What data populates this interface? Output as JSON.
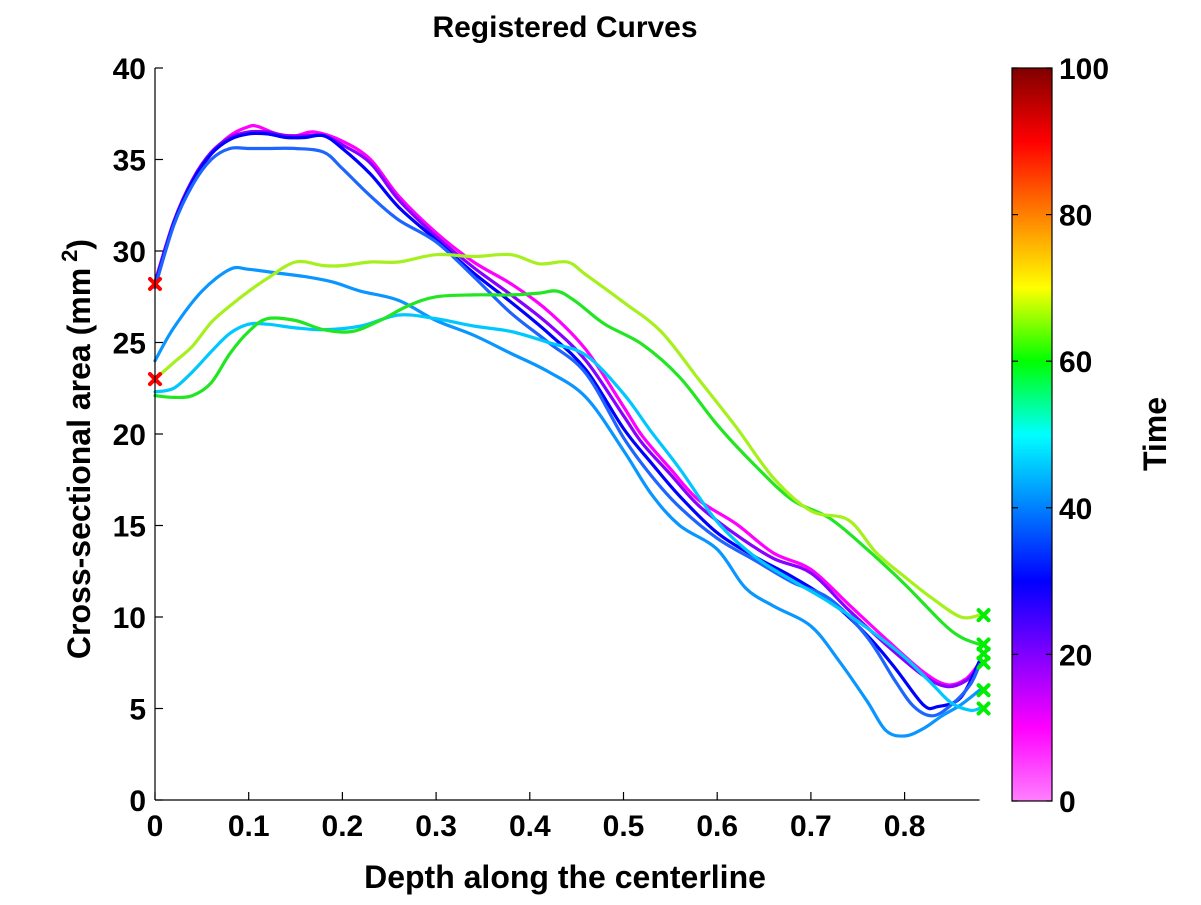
{
  "chart_data": {
    "type": "line",
    "title": "Registered Curves",
    "xlabel": "Depth along the centerline",
    "ylabel": "Cross-sectional area (mm",
    "ylabel_superscript": "2",
    "ylabel_suffix": ")",
    "xlim": [
      0,
      0.88
    ],
    "ylim": [
      0,
      40
    ],
    "xticks": [
      "0",
      "0.1",
      "0.2",
      "0.3",
      "0.4",
      "0.5",
      "0.6",
      "0.7",
      "0.8"
    ],
    "yticks": [
      "0",
      "5",
      "10",
      "15",
      "20",
      "25",
      "30",
      "35",
      "40"
    ],
    "grid": false,
    "legend": "none",
    "colorbar": {
      "label": "Time",
      "range": [
        0,
        100
      ],
      "ticks": [
        "0",
        "20",
        "40",
        "60",
        "80",
        "100"
      ],
      "colormap": [
        "#ff80ff",
        "#ff00ff",
        "#8000ff",
        "#0000ff",
        "#0080ff",
        "#00ffff",
        "#00ff00",
        "#ffff00",
        "#ff8000",
        "#ff0000",
        "#800000"
      ]
    },
    "markers": {
      "start_color": "#ff0000",
      "end_color": "#00ee00",
      "start_points": [
        [
          0,
          28.2
        ],
        [
          0,
          23
        ]
      ],
      "end_points": [
        [
          0.88,
          10.1
        ],
        [
          0.88,
          8.5
        ],
        [
          0.88,
          8
        ],
        [
          0.88,
          7.5
        ],
        [
          0.88,
          6
        ],
        [
          0.88,
          5
        ]
      ]
    },
    "series": [
      {
        "color": "#ff00ff",
        "x": [
          0,
          0.02,
          0.04,
          0.06,
          0.08,
          0.1,
          0.11,
          0.13,
          0.15,
          0.17,
          0.2,
          0.23,
          0.26,
          0.3,
          0.34,
          0.38,
          0.42,
          0.46,
          0.5,
          0.52,
          0.55,
          0.58,
          0.62,
          0.66,
          0.7,
          0.74,
          0.78,
          0.82,
          0.845,
          0.865,
          0.88
        ],
        "y": [
          28.2,
          31.5,
          33.8,
          35.3,
          36.3,
          36.8,
          36.8,
          36.4,
          36.3,
          36.5,
          36,
          35,
          33,
          31,
          29.4,
          28.2,
          26.7,
          24.6,
          21.5,
          19.9,
          18.1,
          16.4,
          15.1,
          13.5,
          12.6,
          10.7,
          8.8,
          7,
          6.3,
          6.6,
          7.5
        ]
      },
      {
        "color": "#8800ff",
        "x": [
          0,
          0.02,
          0.04,
          0.06,
          0.08,
          0.1,
          0.12,
          0.14,
          0.16,
          0.18,
          0.2,
          0.23,
          0.26,
          0.3,
          0.34,
          0.38,
          0.42,
          0.46,
          0.5,
          0.52,
          0.55,
          0.58,
          0.62,
          0.66,
          0.7,
          0.74,
          0.78,
          0.82,
          0.845,
          0.865,
          0.88
        ],
        "y": [
          28.3,
          31.6,
          33.9,
          35.4,
          36.2,
          36.5,
          36.5,
          36.3,
          36.3,
          36.3,
          35.8,
          34.8,
          32.8,
          30.8,
          29.1,
          27.6,
          26,
          24,
          21,
          19.5,
          17.8,
          16.1,
          14.5,
          13.2,
          12.4,
          10.4,
          8.5,
          6.8,
          6.2,
          6.5,
          7.3
        ]
      },
      {
        "color": "#0000ff",
        "x": [
          0,
          0.02,
          0.04,
          0.06,
          0.08,
          0.1,
          0.12,
          0.14,
          0.16,
          0.18,
          0.2,
          0.23,
          0.26,
          0.3,
          0.34,
          0.38,
          0.42,
          0.46,
          0.5,
          0.53,
          0.56,
          0.6,
          0.64,
          0.68,
          0.72,
          0.76,
          0.79,
          0.82,
          0.835,
          0.86,
          0.88
        ],
        "y": [
          28.1,
          31.5,
          33.8,
          35.3,
          36.1,
          36.4,
          36.4,
          36.2,
          36.2,
          36.3,
          35.6,
          34.2,
          32.4,
          30.6,
          28.8,
          27.2,
          25.5,
          23.5,
          20.3,
          18.4,
          16.6,
          14.6,
          13.3,
          12.2,
          10.9,
          9,
          7.2,
          5.2,
          5.1,
          5.6,
          7.6
        ]
      },
      {
        "color": "#1e64ff",
        "x": [
          0,
          0.02,
          0.04,
          0.06,
          0.08,
          0.1,
          0.12,
          0.15,
          0.18,
          0.2,
          0.23,
          0.26,
          0.3,
          0.34,
          0.38,
          0.42,
          0.46,
          0.5,
          0.53,
          0.56,
          0.6,
          0.64,
          0.68,
          0.72,
          0.76,
          0.79,
          0.81,
          0.83,
          0.85,
          0.87,
          0.88
        ],
        "y": [
          28,
          31.4,
          33.6,
          35,
          35.6,
          35.6,
          35.6,
          35.6,
          35.4,
          34.5,
          33,
          31.7,
          30.5,
          28.6,
          26.6,
          25,
          23.3,
          19.8,
          17.7,
          16,
          14.3,
          13.1,
          11.9,
          11,
          8.9,
          6.5,
          5.1,
          4.6,
          5.2,
          6.3,
          7.4
        ]
      },
      {
        "color": "#0a96ff",
        "x": [
          0,
          0.02,
          0.05,
          0.08,
          0.1,
          0.13,
          0.16,
          0.19,
          0.22,
          0.26,
          0.3,
          0.34,
          0.38,
          0.42,
          0.46,
          0.5,
          0.53,
          0.56,
          0.6,
          0.63,
          0.66,
          0.7,
          0.73,
          0.76,
          0.78,
          0.8,
          0.82,
          0.84,
          0.86,
          0.88
        ],
        "y": [
          24,
          25.8,
          27.8,
          29,
          29,
          28.8,
          28.6,
          28.3,
          27.8,
          27.3,
          26.2,
          25.4,
          24.4,
          23.4,
          22,
          19.1,
          16.7,
          15,
          13.7,
          11.6,
          10.6,
          9.5,
          7.6,
          5.4,
          3.8,
          3.5,
          3.9,
          4.6,
          5.2,
          6
        ]
      },
      {
        "color": "#00c8ff",
        "x": [
          0,
          0.02,
          0.04,
          0.06,
          0.08,
          0.1,
          0.12,
          0.15,
          0.18,
          0.22,
          0.26,
          0.3,
          0.34,
          0.38,
          0.42,
          0.46,
          0.5,
          0.53,
          0.56,
          0.6,
          0.64,
          0.68,
          0.72,
          0.76,
          0.8,
          0.83,
          0.85,
          0.87,
          0.88
        ],
        "y": [
          22.3,
          22.5,
          23.4,
          24.5,
          25.5,
          26,
          26,
          25.8,
          25.7,
          25.9,
          26.5,
          26.3,
          25.9,
          25.6,
          25,
          24.3,
          22.2,
          20.1,
          18.1,
          15.2,
          13.3,
          12,
          10.8,
          9.4,
          7.8,
          6.3,
          5.3,
          4.9,
          5
        ]
      },
      {
        "color": "#22e622",
        "x": [
          0,
          0.02,
          0.04,
          0.06,
          0.08,
          0.1,
          0.12,
          0.15,
          0.18,
          0.21,
          0.24,
          0.27,
          0.3,
          0.34,
          0.38,
          0.41,
          0.43,
          0.45,
          0.48,
          0.52,
          0.56,
          0.6,
          0.64,
          0.68,
          0.72,
          0.76,
          0.8,
          0.84,
          0.86,
          0.88
        ],
        "y": [
          22.1,
          22,
          22.1,
          22.8,
          24.4,
          25.6,
          26.3,
          26.2,
          25.7,
          25.6,
          26.2,
          27,
          27.5,
          27.6,
          27.6,
          27.7,
          27.8,
          27.2,
          26,
          24.9,
          23.1,
          20.5,
          18.3,
          16.4,
          15.4,
          13.7,
          11.8,
          9.7,
          8.9,
          8.5
        ]
      },
      {
        "color": "#a6f01e",
        "x": [
          0,
          0.02,
          0.04,
          0.06,
          0.08,
          0.1,
          0.12,
          0.15,
          0.18,
          0.2,
          0.23,
          0.26,
          0.3,
          0.34,
          0.38,
          0.41,
          0.44,
          0.46,
          0.5,
          0.54,
          0.58,
          0.62,
          0.66,
          0.7,
          0.74,
          0.77,
          0.8,
          0.83,
          0.86,
          0.88
        ],
        "y": [
          23,
          23.9,
          24.8,
          26.1,
          27,
          27.8,
          28.5,
          29.4,
          29.2,
          29.2,
          29.4,
          29.4,
          29.8,
          29.7,
          29.8,
          29.3,
          29.4,
          28.7,
          27.2,
          25.6,
          23,
          20.4,
          17.6,
          15.8,
          15.3,
          13.5,
          12.2,
          11,
          10,
          10.1
        ]
      }
    ]
  }
}
